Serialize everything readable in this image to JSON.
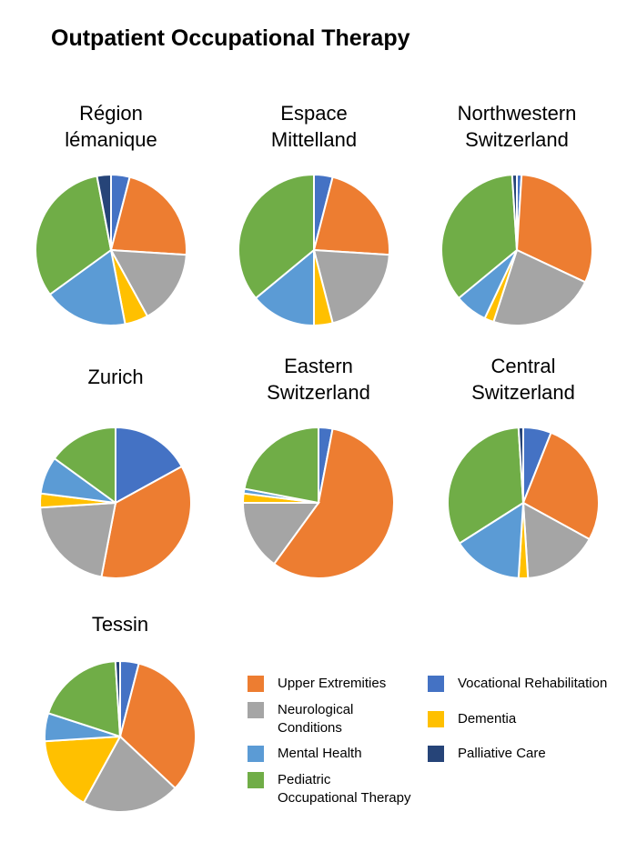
{
  "title": "Outpatient Occupational Therapy",
  "categories": [
    "Vocational Rehabilitation",
    "Upper Extremities",
    "Neurological Conditions",
    "Dementia",
    "Mental Health",
    "Pediatric Occupational Therapy",
    "Palliative Care"
  ],
  "colors": [
    "#4472c4",
    "#ed7d31",
    "#a5a5a5",
    "#ffc000",
    "#5b9bd5",
    "#70ad47",
    "#264478"
  ],
  "chart_data": [
    {
      "type": "pie",
      "title": "Région lémanique",
      "values": [
        4,
        22,
        16,
        5,
        18,
        32,
        3
      ]
    },
    {
      "type": "pie",
      "title": "Espace Mittelland",
      "values": [
        4,
        22,
        20,
        4,
        14,
        36,
        0
      ]
    },
    {
      "type": "pie",
      "title": "Northwestern Switzerland",
      "values": [
        1,
        31,
        23,
        2,
        7,
        35,
        1
      ]
    },
    {
      "type": "pie",
      "title": "Zurich",
      "values": [
        17,
        36,
        21,
        3,
        8,
        15,
        0
      ]
    },
    {
      "type": "pie",
      "title": "Eastern Switzerland",
      "values": [
        3,
        57,
        15,
        2,
        1,
        22,
        0
      ]
    },
    {
      "type": "pie",
      "title": "Central Switzerland",
      "values": [
        6,
        27,
        16,
        2,
        15,
        33,
        1
      ]
    },
    {
      "type": "pie",
      "title": "Tessin",
      "values": [
        4,
        33,
        21,
        16,
        6,
        19,
        1
      ]
    }
  ]
}
